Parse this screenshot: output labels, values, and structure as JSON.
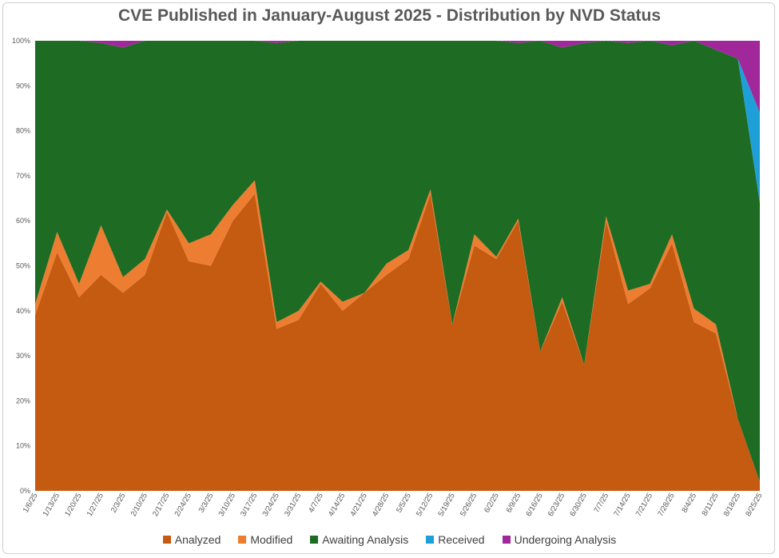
{
  "chart_data": {
    "type": "area",
    "stacked": "percent",
    "title": "CVE Published in January-August 2025 - Distribution by NVD Status",
    "xlabel": "",
    "ylabel": "",
    "ylim": [
      0,
      100
    ],
    "y_ticks": [
      "0%",
      "10%",
      "20%",
      "30%",
      "40%",
      "50%",
      "60%",
      "70%",
      "80%",
      "90%",
      "100%"
    ],
    "legend_position": "bottom",
    "categories": [
      "1/6/25",
      "1/13/25",
      "1/20/25",
      "1/27/25",
      "2/3/25",
      "2/10/25",
      "2/17/25",
      "2/24/25",
      "3/3/25",
      "3/10/25",
      "3/17/25",
      "3/24/25",
      "3/31/25",
      "4/7/25",
      "4/14/25",
      "4/21/25",
      "4/28/25",
      "5/5/25",
      "5/12/25",
      "5/19/25",
      "5/26/25",
      "6/2/25",
      "6/9/25",
      "6/16/25",
      "6/23/25",
      "6/30/25",
      "7/7/25",
      "7/14/25",
      "7/21/25",
      "7/28/25",
      "8/4/25",
      "8/11/25",
      "8/18/25",
      "8/25/25"
    ],
    "series": [
      {
        "name": "Analyzed",
        "color": "#c55a11",
        "values": [
          39,
          53,
          43,
          48,
          44,
          48,
          62,
          51,
          50,
          60,
          66,
          36,
          38,
          46,
          40,
          44,
          48,
          51.5,
          66,
          37,
          54.5,
          51.5,
          60,
          31,
          42,
          28,
          60,
          41.5,
          45,
          55,
          37.5,
          35,
          16,
          2
        ]
      },
      {
        "name": "Modified",
        "color": "#ed7d31",
        "values": [
          2.5,
          4.5,
          3,
          11,
          3.5,
          3.5,
          0.5,
          4,
          7,
          3.5,
          3,
          1.5,
          2,
          0.5,
          2,
          0,
          2.5,
          2,
          1,
          0,
          2.5,
          0.5,
          0.5,
          0,
          1,
          0,
          1,
          3,
          1,
          2,
          3,
          2,
          0,
          0
        ]
      },
      {
        "name": "Awaiting Analysis",
        "color": "#1e6b23",
        "values": [
          58.5,
          42.5,
          54,
          40.5,
          51,
          48.5,
          37.5,
          45,
          43,
          36.5,
          31,
          62,
          60,
          53.5,
          58,
          56,
          49.5,
          46.5,
          33,
          63,
          43,
          48,
          39,
          69,
          55.5,
          71.5,
          39,
          55,
          54,
          42,
          59.5,
          61,
          80,
          62
        ]
      },
      {
        "name": "Received",
        "color": "#1f9fd8",
        "values": [
          0,
          0,
          0,
          0,
          0,
          0,
          0,
          0,
          0,
          0,
          0,
          0,
          0,
          0,
          0,
          0,
          0,
          0,
          0,
          0,
          0,
          0,
          0,
          0,
          0,
          0,
          0,
          0,
          0,
          0,
          0,
          0,
          0,
          20
        ]
      },
      {
        "name": "Undergoing Analysis",
        "color": "#a0289a",
        "values": [
          0,
          0,
          0,
          0.5,
          1.5,
          0,
          0,
          0,
          0,
          0,
          0,
          0.5,
          0,
          0,
          0,
          0,
          0,
          0,
          0,
          0,
          0,
          0,
          0.5,
          0,
          1.5,
          0.5,
          0,
          0.5,
          0,
          1,
          0,
          2,
          4,
          16
        ]
      }
    ]
  }
}
